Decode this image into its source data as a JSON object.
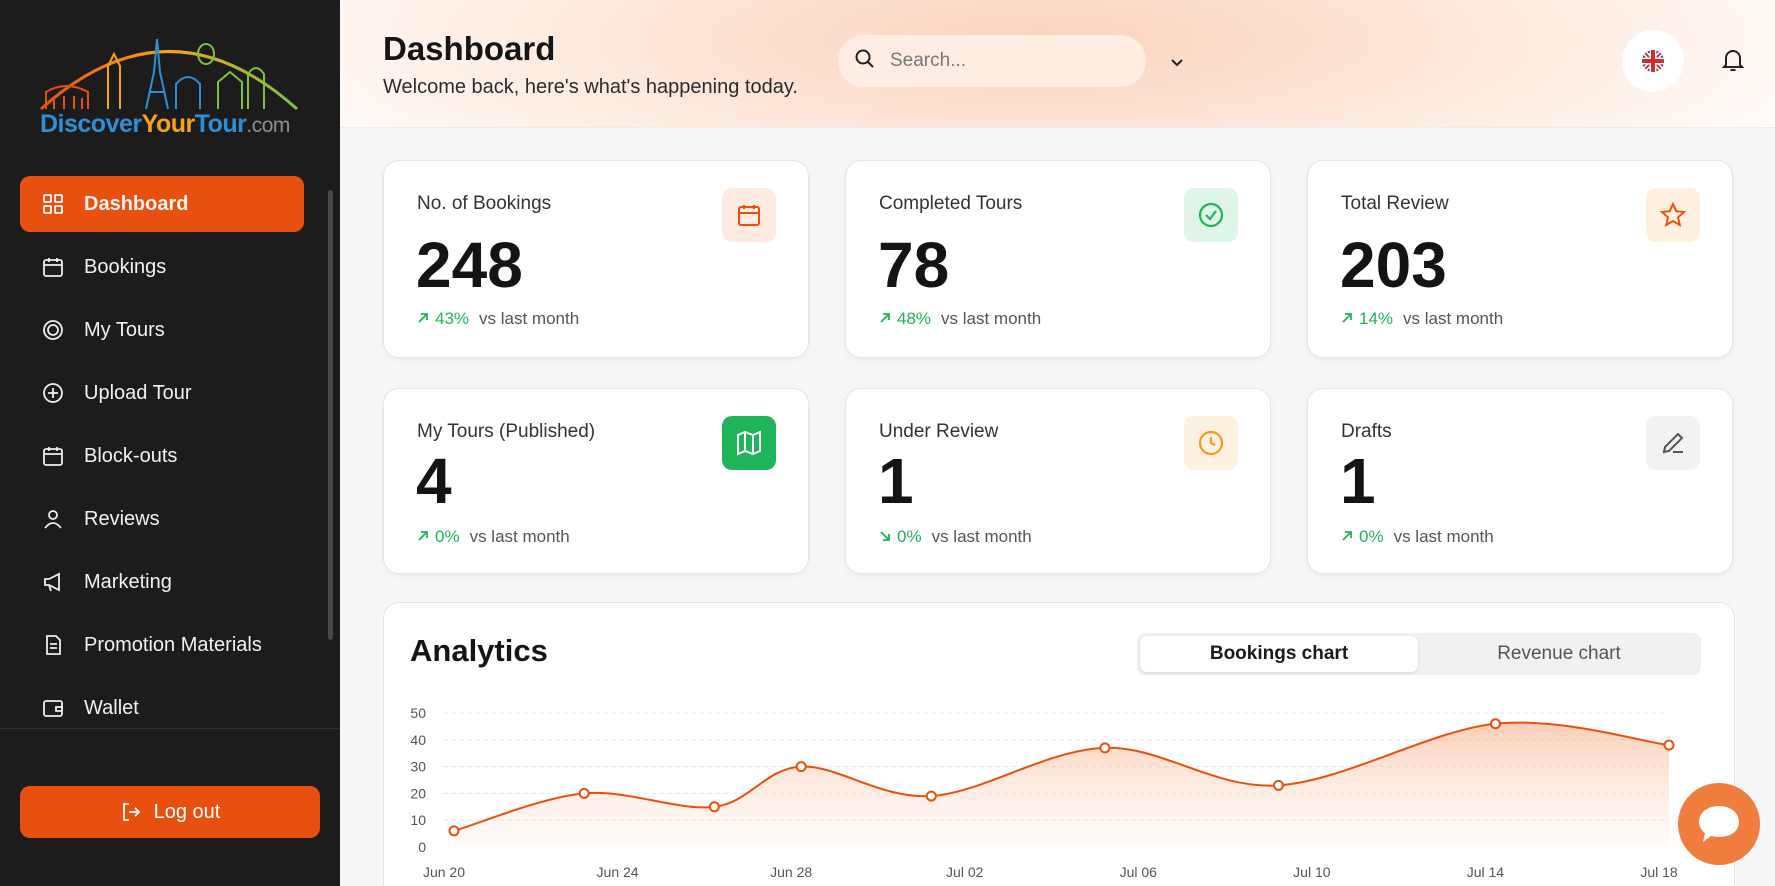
{
  "brand": {
    "part1": "Discover",
    "part2": "Your",
    "part3": "Tour",
    "suffix": ".com"
  },
  "sidebar": {
    "items": [
      {
        "label": "Dashboard",
        "icon": "grid-icon"
      },
      {
        "label": "Bookings",
        "icon": "calendar-icon"
      },
      {
        "label": "My Tours",
        "icon": "target-icon"
      },
      {
        "label": "Upload Tour",
        "icon": "plus-circle-icon"
      },
      {
        "label": "Block-outs",
        "icon": "calendar-icon"
      },
      {
        "label": "Reviews",
        "icon": "user-icon"
      },
      {
        "label": "Marketing",
        "icon": "megaphone-icon"
      },
      {
        "label": "Promotion Materials",
        "icon": "document-icon"
      },
      {
        "label": "Wallet",
        "icon": "wallet-icon"
      }
    ],
    "logout_label": "Log out"
  },
  "header": {
    "title": "Dashboard",
    "subtitle": "Welcome back, here's what's happening today.",
    "search_placeholder": "Search..."
  },
  "stats": [
    {
      "label": "No. of Bookings",
      "value": "248",
      "change": "43%",
      "trend": "up",
      "suffix": "vs last month",
      "icon": "calendar-icon"
    },
    {
      "label": "Completed Tours",
      "value": "78",
      "change": "48%",
      "trend": "up",
      "suffix": "vs last month",
      "icon": "check-circle-icon"
    },
    {
      "label": "Total Review",
      "value": "203",
      "change": "14%",
      "trend": "up",
      "suffix": "vs last month",
      "icon": "star-icon"
    },
    {
      "label": "My Tours (Published)",
      "value": "4",
      "change": "0%",
      "trend": "up",
      "suffix": "vs last month",
      "icon": "map-icon"
    },
    {
      "label": "Under Review",
      "value": "1",
      "change": "0%",
      "trend": "down",
      "suffix": "vs last month",
      "icon": "clock-icon"
    },
    {
      "label": "Drafts",
      "value": "1",
      "change": "0%",
      "trend": "up",
      "suffix": "vs last month",
      "icon": "pencil-icon"
    }
  ],
  "analytics": {
    "title": "Analytics",
    "tabs": [
      "Bookings chart",
      "Revenue chart"
    ],
    "active_tab": "Bookings chart"
  },
  "colors": {
    "accent": "#e8500f",
    "sidebar_bg": "#1c1c1c",
    "positive": "#1fb45a",
    "chart_line": "#e8500f"
  },
  "chart_data": {
    "type": "area",
    "x_ticks": [
      "Jun 20",
      "Jun 24",
      "Jun 28",
      "Jul 02",
      "Jul 06",
      "Jul 10",
      "Jul 14",
      "Jul 18"
    ],
    "y_ticks": [
      0,
      10,
      20,
      30,
      40,
      50
    ],
    "ylim": [
      0,
      50
    ],
    "points": [
      {
        "x": "Jun 20",
        "y": 6
      },
      {
        "x": "Jun 23",
        "y": 20
      },
      {
        "x": "Jun 26",
        "y": 15
      },
      {
        "x": "Jun 28",
        "y": 30
      },
      {
        "x": "Jul 01",
        "y": 19
      },
      {
        "x": "Jul 05",
        "y": 37
      },
      {
        "x": "Jul 09",
        "y": 23
      },
      {
        "x": "Jul 14",
        "y": 46
      },
      {
        "x": "Jul 18",
        "y": 38
      }
    ],
    "grid": true
  }
}
